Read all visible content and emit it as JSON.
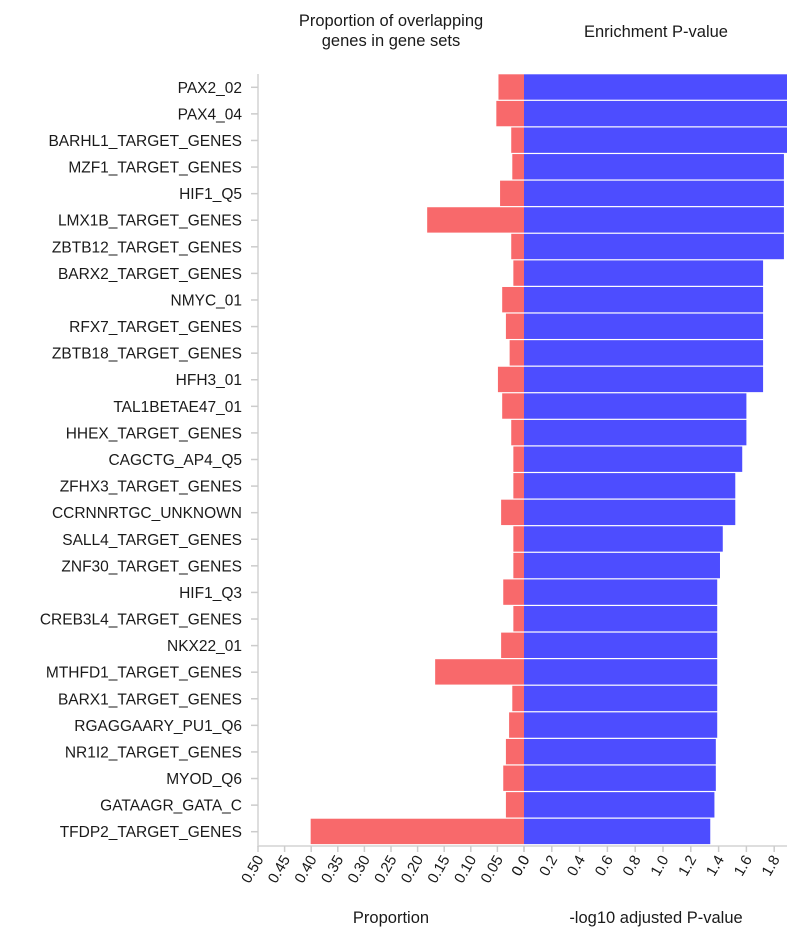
{
  "chart_data": [
    {
      "type": "bar",
      "orientation": "horizontal",
      "title_lines": [
        "Proportion of overlapping",
        "genes in gene sets"
      ],
      "xlabel": "Proportion",
      "x_reversed": true,
      "xlim": [
        0,
        0.5
      ],
      "ticks": [
        0.0,
        0.05,
        0.1,
        0.15,
        0.2,
        0.25,
        0.3,
        0.35,
        0.4,
        0.45,
        0.5
      ],
      "tick_labels": [
        "0.0",
        "0.05",
        "0.10",
        "0.15",
        "0.20",
        "0.25",
        "0.30",
        "0.35",
        "0.40",
        "0.45",
        "0.50"
      ],
      "color": "#f8696b",
      "categories": [
        "PAX2_02",
        "PAX4_04",
        "BARHL1_TARGET_GENES",
        "MZF1_TARGET_GENES",
        "HIF1_Q5",
        "LMX1B_TARGET_GENES",
        "ZBTB12_TARGET_GENES",
        "BARX2_TARGET_GENES",
        "NMYC_01",
        "RFX7_TARGET_GENES",
        "ZBTB18_TARGET_GENES",
        "HFH3_01",
        "TAL1BETAE47_01",
        "HHEX_TARGET_GENES",
        "CAGCTG_AP4_Q5",
        "ZFHX3_TARGET_GENES",
        "CCRNNRTGC_UNKNOWN",
        "SALL4_TARGET_GENES",
        "ZNF30_TARGET_GENES",
        "HIF1_Q3",
        "CREB3L4_TARGET_GENES",
        "NKX22_01",
        "MTHFD1_TARGET_GENES",
        "BARX1_TARGET_GENES",
        "RGAGGAARY_PU1_Q6",
        "NR1I2_TARGET_GENES",
        "MYOD_Q6",
        "GATAAGR_GATA_C",
        "TFDP2_TARGET_GENES"
      ],
      "values": [
        0.048,
        0.052,
        0.024,
        0.022,
        0.045,
        0.182,
        0.024,
        0.02,
        0.041,
        0.034,
        0.027,
        0.049,
        0.041,
        0.024,
        0.02,
        0.02,
        0.043,
        0.02,
        0.02,
        0.039,
        0.02,
        0.043,
        0.167,
        0.022,
        0.028,
        0.034,
        0.039,
        0.034,
        0.401
      ]
    },
    {
      "type": "bar",
      "orientation": "horizontal",
      "title": "Enrichment P-value",
      "xlabel": "-log10 adjusted P-value",
      "xlim": [
        0,
        1.9
      ],
      "ticks": [
        0.0,
        0.2,
        0.4,
        0.6,
        0.8,
        1.0,
        1.2,
        1.4,
        1.6,
        1.8
      ],
      "tick_labels": [
        "0.0",
        "0.2",
        "0.4",
        "0.6",
        "0.8",
        "1.0",
        "1.2",
        "1.4",
        "1.6",
        "1.8"
      ],
      "color": "#4d4dff",
      "categories": [
        "PAX2_02",
        "PAX4_04",
        "BARHL1_TARGET_GENES",
        "MZF1_TARGET_GENES",
        "HIF1_Q5",
        "LMX1B_TARGET_GENES",
        "ZBTB12_TARGET_GENES",
        "BARX2_TARGET_GENES",
        "NMYC_01",
        "RFX7_TARGET_GENES",
        "ZBTB18_TARGET_GENES",
        "HFH3_01",
        "TAL1BETAE47_01",
        "HHEX_TARGET_GENES",
        "CAGCTG_AP4_Q5",
        "ZFHX3_TARGET_GENES",
        "CCRNNRTGC_UNKNOWN",
        "SALL4_TARGET_GENES",
        "ZNF30_TARGET_GENES",
        "HIF1_Q3",
        "CREB3L4_TARGET_GENES",
        "NKX22_01",
        "MTHFD1_TARGET_GENES",
        "BARX1_TARGET_GENES",
        "RGAGGAARY_PU1_Q6",
        "NR1I2_TARGET_GENES",
        "MYOD_Q6",
        "GATAAGR_GATA_C",
        "TFDP2_TARGET_GENES"
      ],
      "values": [
        1.92,
        1.92,
        1.92,
        1.87,
        1.87,
        1.87,
        1.87,
        1.72,
        1.72,
        1.72,
        1.72,
        1.72,
        1.6,
        1.6,
        1.57,
        1.52,
        1.52,
        1.43,
        1.41,
        1.39,
        1.39,
        1.39,
        1.39,
        1.39,
        1.39,
        1.38,
        1.38,
        1.37,
        1.34
      ]
    }
  ]
}
